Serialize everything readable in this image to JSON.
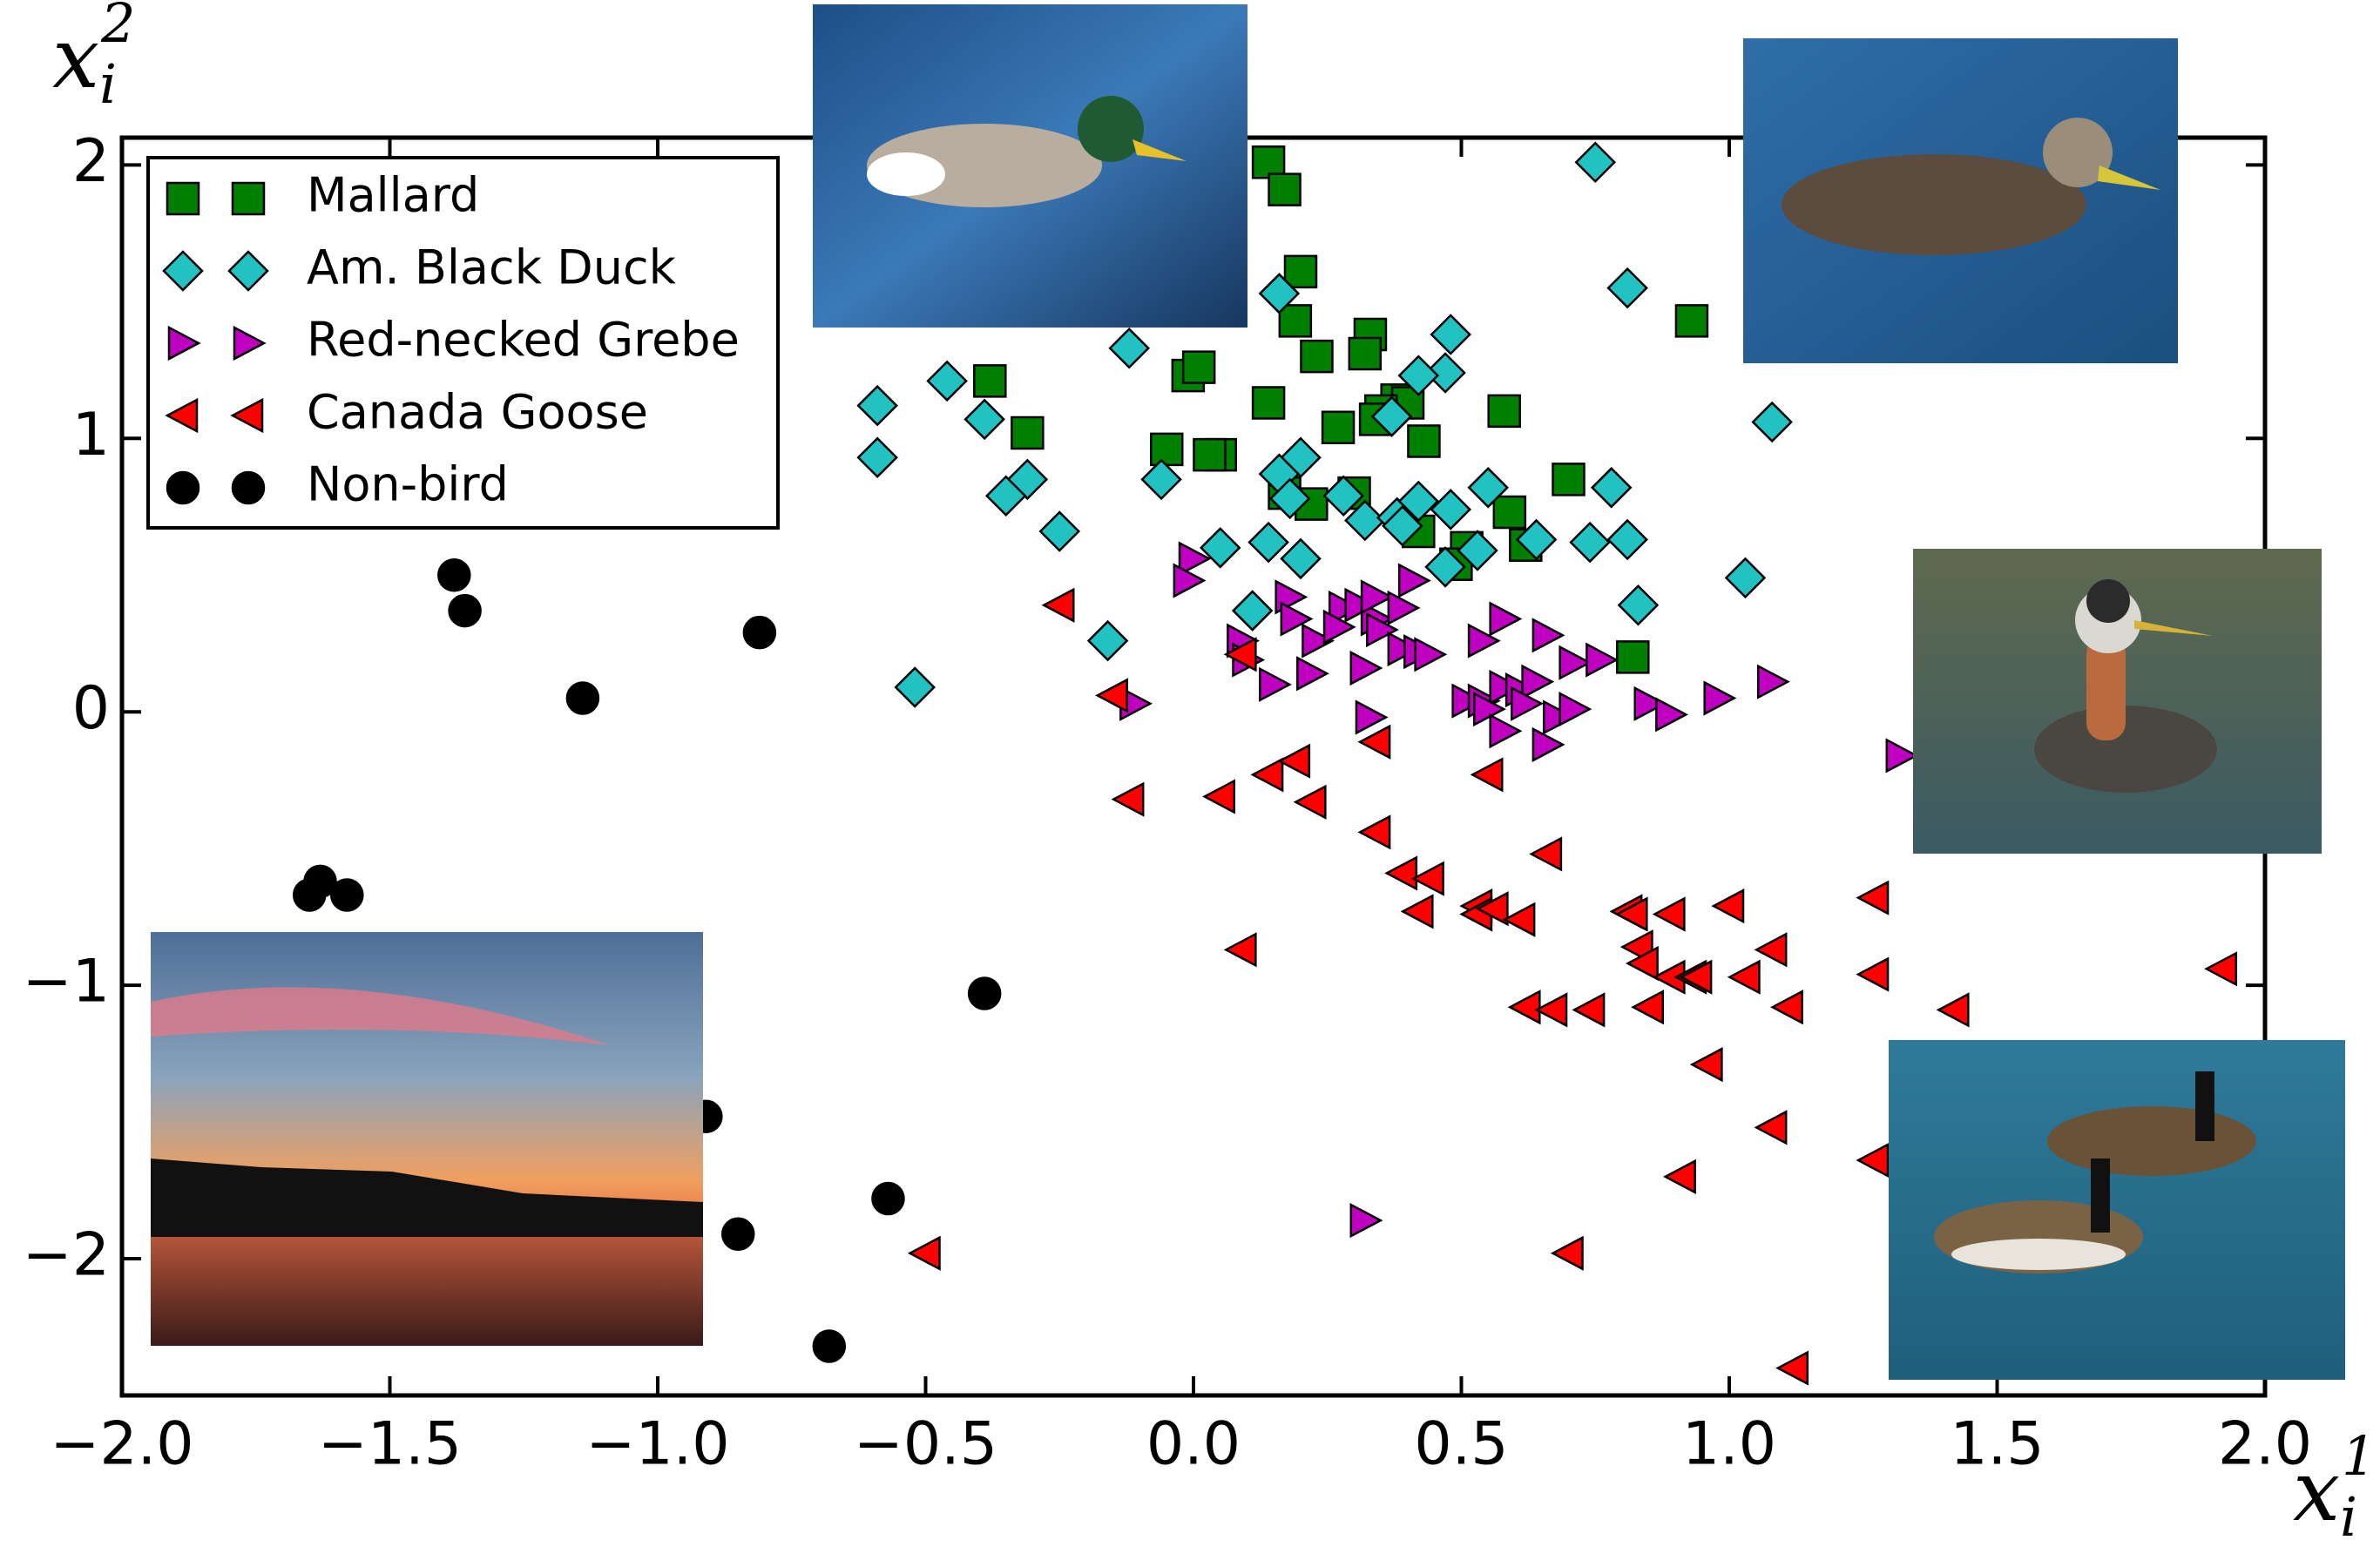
{
  "chart_data": {
    "type": "scatter",
    "x_label": {
      "base": "x",
      "sub": "i",
      "sup": "1"
    },
    "y_label": {
      "base": "x",
      "sub": "i",
      "sup": "2"
    },
    "xlim": [
      -2,
      2
    ],
    "ylim": [
      -2.5,
      2.1
    ],
    "xticks": [
      {
        "value": -2,
        "label": "−2.0"
      },
      {
        "value": -1.5,
        "label": "−1.5"
      },
      {
        "value": -1,
        "label": "−1.0"
      },
      {
        "value": -0.5,
        "label": "−0.5"
      },
      {
        "value": 0,
        "label": "0.0"
      },
      {
        "value": 0.5,
        "label": "0.5"
      },
      {
        "value": 1,
        "label": "1.0"
      },
      {
        "value": 1.5,
        "label": "1.5"
      },
      {
        "value": 2,
        "label": "2.0"
      }
    ],
    "yticks": [
      {
        "value": -2,
        "label": "−2"
      },
      {
        "value": -1,
        "label": "−1"
      },
      0,
      1,
      2
    ],
    "legend": "upper left",
    "series": [
      {
        "name": "Mallard",
        "color": "#008000",
        "marker": "square",
        "x": [
          0.14,
          0.17,
          0.2,
          0.19,
          0.23,
          0.33,
          0.32,
          -0.01,
          0.01,
          0.14,
          0.58,
          0.38,
          0.4,
          0.35,
          -0.31,
          0.27,
          0.43,
          -0.05,
          0.05,
          0.03,
          0.34,
          -0.38,
          0.17,
          0.22,
          0.3,
          0.42,
          0.51,
          0.59,
          0.62,
          0.49,
          0.7,
          0.93,
          0.82
        ],
        "values": [
          2.01,
          1.91,
          1.61,
          1.43,
          1.3,
          1.38,
          1.31,
          1.23,
          1.26,
          1.13,
          1.1,
          1.14,
          1.13,
          1.1,
          1.02,
          1.04,
          0.99,
          0.96,
          0.94,
          0.94,
          1.07,
          1.21,
          0.8,
          0.76,
          0.8,
          0.66,
          0.6,
          0.73,
          0.61,
          0.54,
          0.85,
          1.43,
          0.2
        ]
      },
      {
        "name": "Am. Black Duck",
        "color": "#22c2c2",
        "marker": "diamond",
        "x": [
          0.75,
          0.81,
          1.08,
          0.16,
          -0.12,
          -0.46,
          -0.59,
          -0.59,
          -0.39,
          -0.31,
          -0.35,
          -0.25,
          -0.16,
          -0.52,
          0.48,
          0.47,
          0.42,
          0.37,
          0.2,
          0.16,
          -0.06,
          0.28,
          0.18,
          0.32,
          0.38,
          0.42,
          0.48,
          0.55,
          0.39,
          0.78,
          0.74,
          0.81,
          0.64,
          0.53,
          0.47,
          0.14,
          0.2,
          0.05,
          0.11,
          0.83,
          1.03
        ],
        "values": [
          2.01,
          1.55,
          1.06,
          1.53,
          1.33,
          1.21,
          1.12,
          0.93,
          1.07,
          0.85,
          0.79,
          0.66,
          0.26,
          0.09,
          1.38,
          1.24,
          1.23,
          1.08,
          0.93,
          0.87,
          0.85,
          0.79,
          0.78,
          0.7,
          0.71,
          0.77,
          0.74,
          0.82,
          0.68,
          0.82,
          0.62,
          0.63,
          0.63,
          0.59,
          0.53,
          0.62,
          0.56,
          0.6,
          0.37,
          0.39,
          0.49
        ]
      },
      {
        "name": "Red-necked Grebe",
        "color": "#c000c0",
        "marker": "triangle-right",
        "x": [
          0.0,
          -0.01,
          0.09,
          0.1,
          0.18,
          0.19,
          0.23,
          0.22,
          0.15,
          0.28,
          0.27,
          0.31,
          0.34,
          0.34,
          0.39,
          0.41,
          0.32,
          0.35,
          0.39,
          0.42,
          0.44,
          0.54,
          0.58,
          0.66,
          0.51,
          0.54,
          0.58,
          0.61,
          0.64,
          0.55,
          0.58,
          0.62,
          0.68,
          0.71,
          0.66,
          0.71,
          0.76,
          0.85,
          0.89,
          0.98,
          1.08,
          1.32,
          0.33,
          -0.11,
          0.32
        ],
        "values": [
          0.56,
          0.48,
          0.26,
          0.19,
          0.42,
          0.34,
          0.26,
          0.14,
          0.1,
          0.38,
          0.31,
          0.39,
          0.34,
          0.42,
          0.38,
          0.48,
          0.16,
          0.3,
          0.23,
          0.22,
          0.21,
          0.26,
          0.34,
          0.28,
          0.04,
          0.04,
          0.09,
          0.08,
          0.11,
          0.01,
          -0.07,
          0.03,
          -0.02,
          0.01,
          -0.12,
          0.18,
          0.19,
          0.03,
          -0.01,
          0.05,
          0.11,
          -0.16,
          -0.02,
          0.03,
          -1.86
        ]
      },
      {
        "name": "Canada Goose",
        "color": "#ff0000",
        "marker": "triangle-left",
        "x": [
          -0.25,
          -0.15,
          -0.12,
          0.09,
          0.05,
          0.14,
          0.19,
          0.22,
          0.34,
          0.34,
          0.39,
          0.44,
          0.42,
          0.55,
          0.53,
          0.53,
          0.56,
          0.61,
          0.66,
          0.09,
          0.62,
          0.67,
          0.74,
          0.81,
          0.82,
          0.89,
          1.0,
          0.83,
          0.84,
          0.89,
          0.93,
          0.85,
          0.94,
          1.03,
          1.08,
          1.11,
          1.27,
          1.27,
          1.42,
          1.92,
          0.96,
          1.08,
          0.91,
          1.27,
          0.7,
          -0.5,
          1.12
        ],
        "values": [
          0.39,
          0.06,
          -0.32,
          0.21,
          -0.31,
          -0.23,
          -0.18,
          -0.33,
          -0.11,
          -0.44,
          -0.59,
          -0.61,
          -0.73,
          -0.23,
          -0.71,
          -0.74,
          -0.72,
          -0.76,
          -0.52,
          -0.87,
          -1.08,
          -1.09,
          -1.09,
          -0.73,
          -0.74,
          -0.74,
          -0.71,
          -0.86,
          -0.92,
          -0.97,
          -0.97,
          -1.08,
          -0.97,
          -0.97,
          -0.87,
          -1.08,
          -0.68,
          -0.96,
          -1.09,
          -0.94,
          -1.29,
          -1.52,
          -1.7,
          -1.64,
          -1.98,
          -1.98,
          -2.4
        ]
      },
      {
        "name": "Non-bird",
        "color": "#000000",
        "marker": "circle",
        "x": [
          -1.38,
          -1.36,
          -1.14,
          -0.81,
          -1.65,
          -1.63,
          -1.58,
          -0.39,
          -0.91,
          -0.57,
          -0.85,
          -0.68
        ],
        "values": [
          0.5,
          0.37,
          0.05,
          0.29,
          -0.67,
          -0.62,
          -0.67,
          -1.03,
          -1.48,
          -1.78,
          -1.91,
          -2.32
        ]
      }
    ]
  }
}
